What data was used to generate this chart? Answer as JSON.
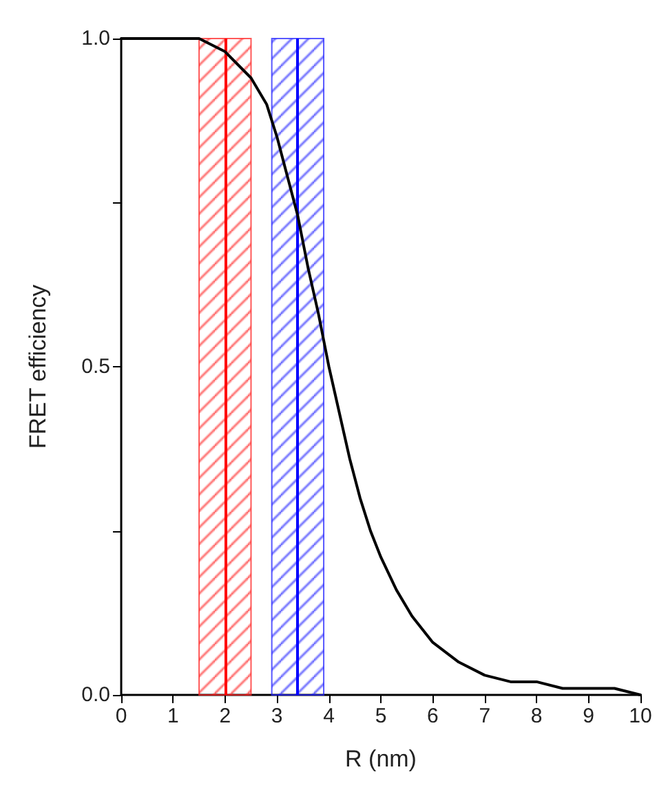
{
  "chart_data": {
    "type": "line",
    "xlabel": "R (nm)",
    "ylabel": "FRET efficiency",
    "x": [
      0,
      0.5,
      1,
      1.5,
      2,
      2.5,
      2.8,
      3,
      3.2,
      3.4,
      3.6,
      3.8,
      4,
      4.2,
      4.4,
      4.6,
      4.8,
      5,
      5.3,
      5.6,
      6,
      6.5,
      7,
      7.5,
      8,
      8.5,
      9,
      9.5,
      10
    ],
    "series": [
      {
        "color": "#000000",
        "values": [
          1.0,
          1.0,
          1.0,
          1.0,
          0.98,
          0.94,
          0.9,
          0.85,
          0.79,
          0.73,
          0.65,
          0.58,
          0.5,
          0.43,
          0.36,
          0.3,
          0.25,
          0.21,
          0.16,
          0.12,
          0.08,
          0.05,
          0.03,
          0.02,
          0.02,
          0.01,
          0.01,
          0.01,
          0.0
        ]
      }
    ],
    "xlim": [
      0,
      10
    ],
    "xticks": [
      0,
      1,
      2,
      3,
      4,
      5,
      6,
      7,
      8,
      9,
      10
    ],
    "ylim": [
      0,
      1
    ],
    "yticks": [
      {
        "value": 0,
        "label": "0.0"
      },
      {
        "value": 0.25,
        "label": null
      },
      {
        "value": 0.5,
        "label": "0.5"
      },
      {
        "value": 0.75,
        "label": null
      },
      {
        "value": 1,
        "label": "1.0"
      }
    ],
    "bands": [
      {
        "axis": "x",
        "from": 1.5,
        "to": 2.5,
        "color": "#ff2020"
      },
      {
        "axis": "x",
        "from": 2.9,
        "to": 3.9,
        "color": "#2020ff"
      }
    ],
    "ref_lines": [
      {
        "axis": "x",
        "value": 2,
        "color": "#ff0000"
      },
      {
        "axis": "x",
        "value": 3.4,
        "color": "#0000ff"
      }
    ],
    "grid": false,
    "marker": "none",
    "line_style": "solid"
  }
}
